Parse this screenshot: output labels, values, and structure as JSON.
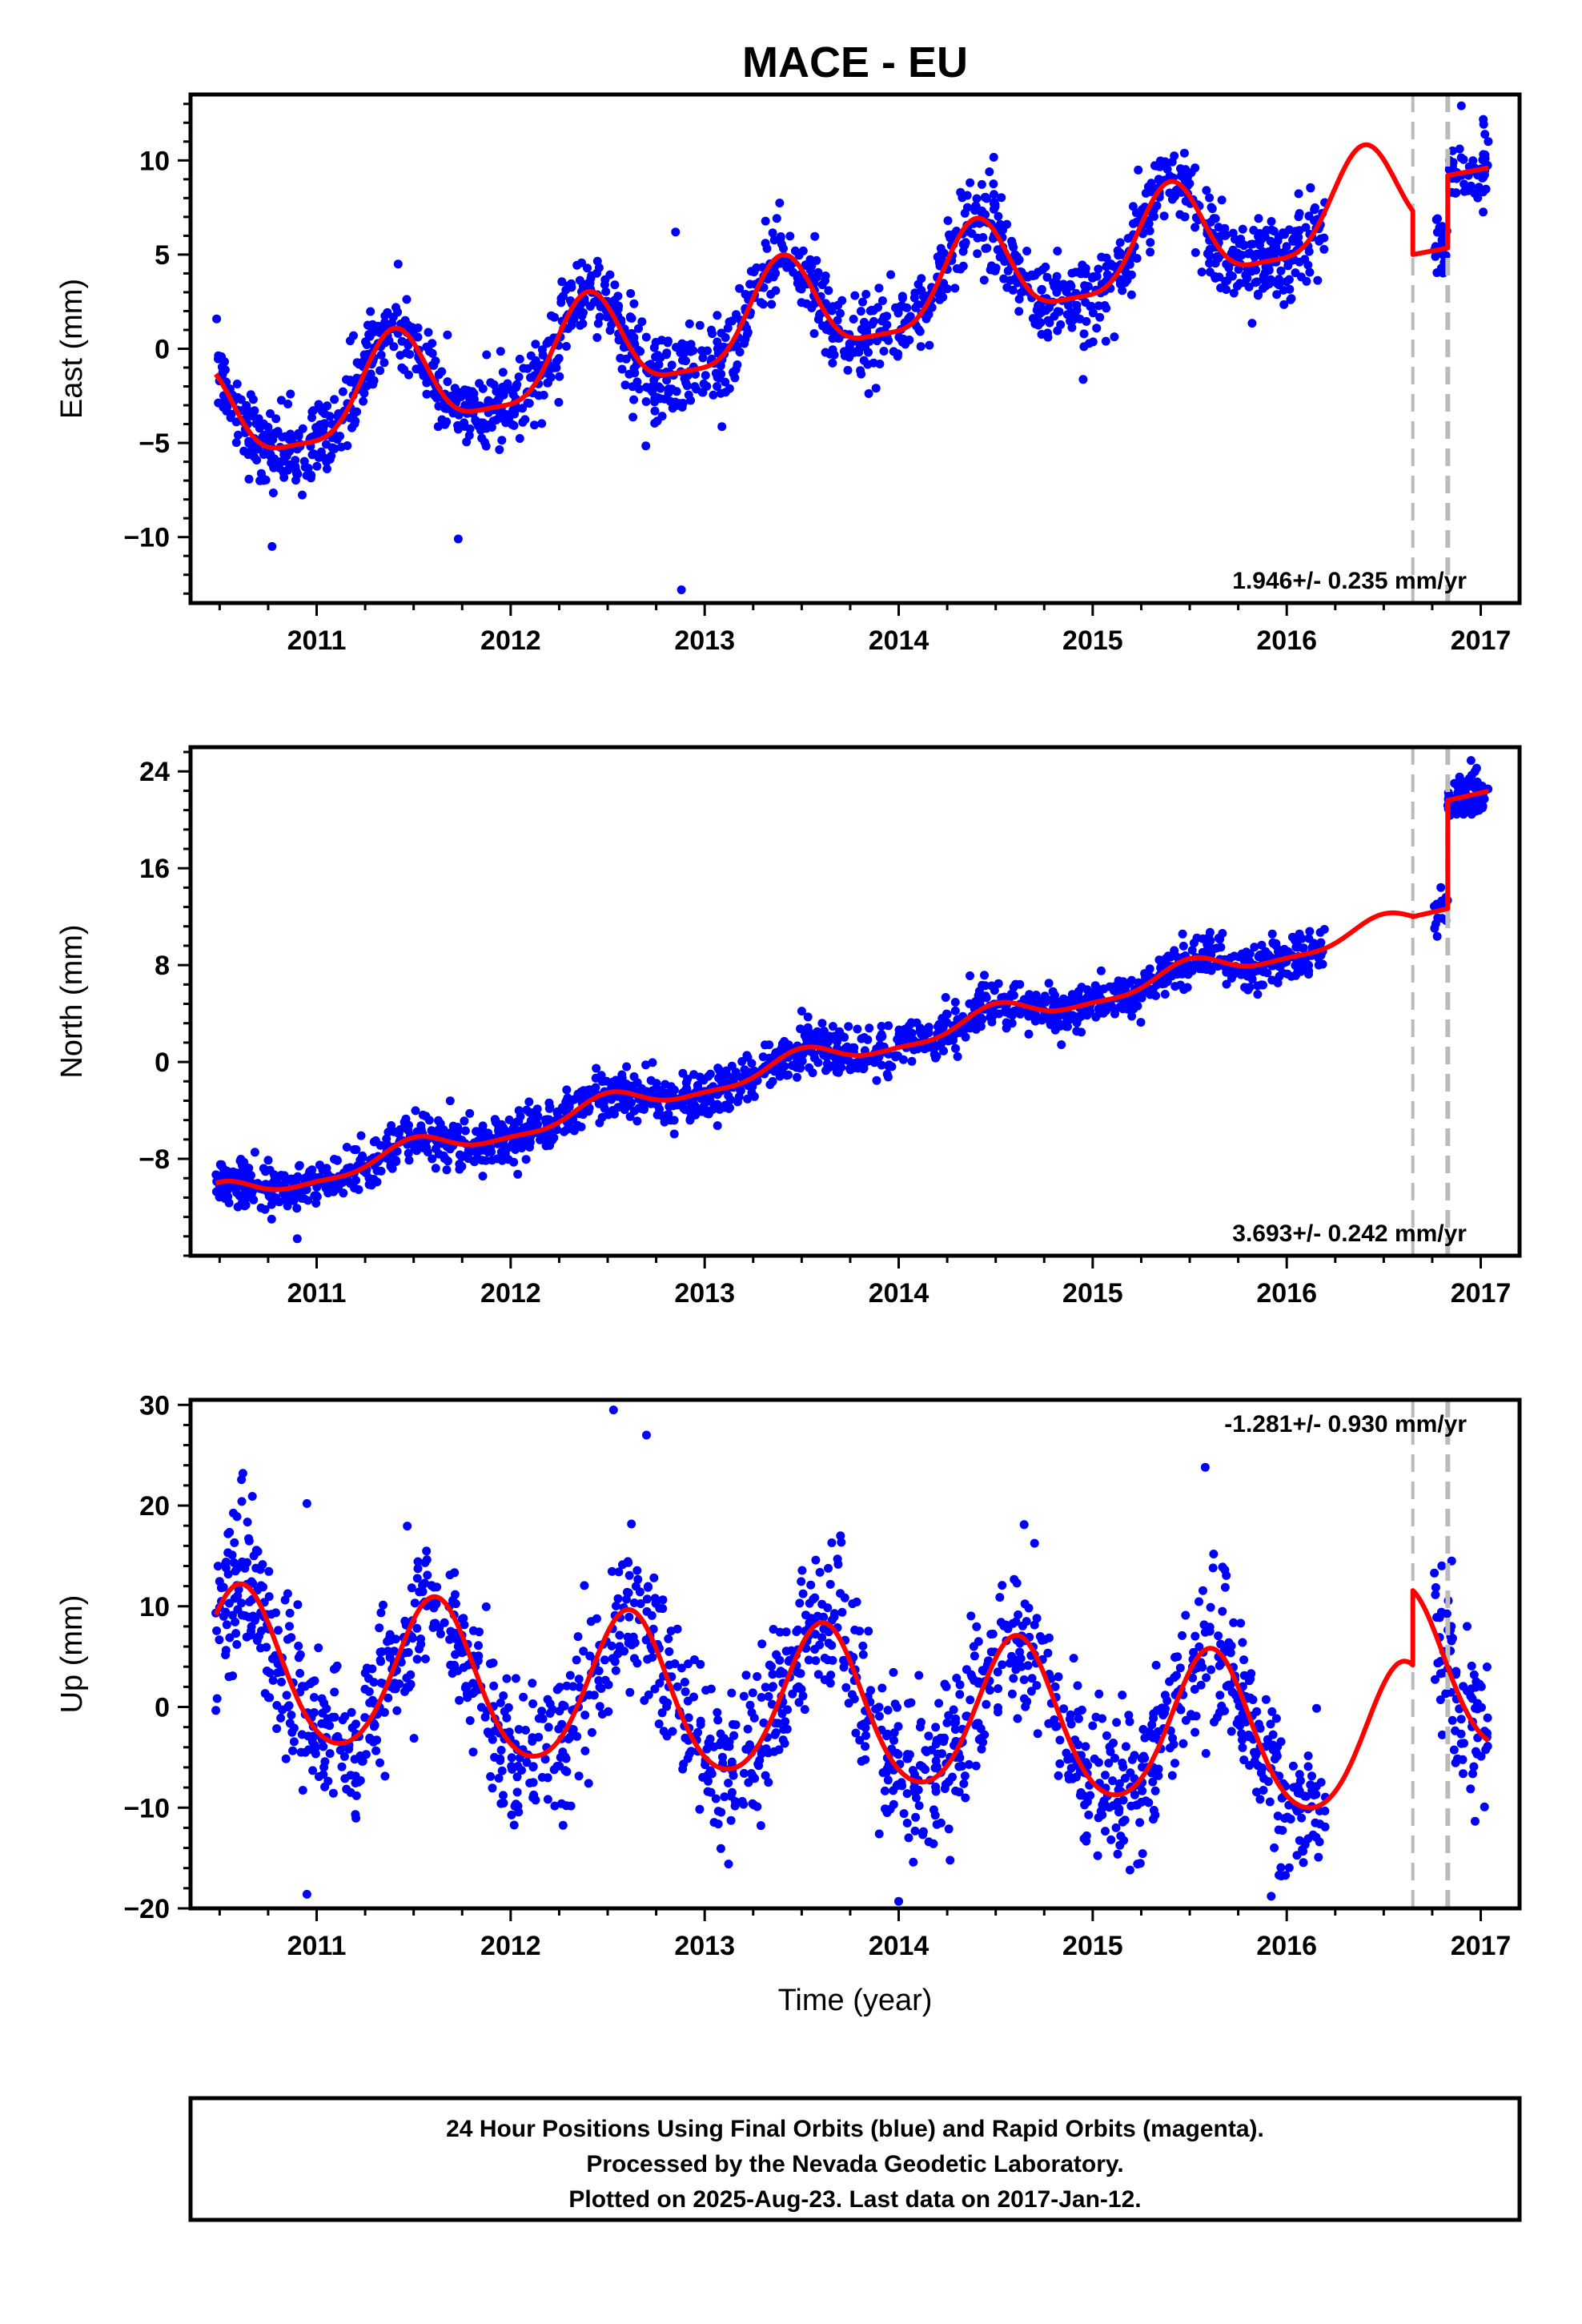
{
  "title": "MACE - EU",
  "xlabel": "Time (year)",
  "caption": [
    "24 Hour Positions Using Final Orbits (blue) and Rapid Orbits (magenta).",
    "Processed by the Nevada Geodetic Laboratory.",
    "Plotted on 2025-Aug-23. Last data on 2017-Jan-12."
  ],
  "colors": {
    "data": "#0000ff",
    "model": "#ff0000",
    "event_line": "#bbbbbb",
    "axes": "#000000"
  },
  "chart_data": [
    {
      "type": "scatter",
      "component": "east",
      "ylabel": "East (mm)",
      "xlim": [
        2010.35,
        2017.2
      ],
      "ylim": [
        -13.5,
        13.5
      ],
      "xticks": [
        2011,
        2012,
        2013,
        2014,
        2015,
        2016,
        2017
      ],
      "yticks": [
        -10,
        -5,
        0,
        5,
        10
      ],
      "rate_text": "1.946+/- 0.235 mm/yr",
      "rate_position": "bottom-right",
      "event_lines": [
        2016.65,
        2016.83
      ],
      "model": {
        "segments": [
          {
            "x_start": 2010.48,
            "x_end": 2016.65,
            "trend": [
              2010.48,
              -4.0,
              1.946
            ],
            "annual": {
              "amplitude": 2.6,
              "peak": 2010.4
            },
            "semiannual": {
              "amplitude": 0.7,
              "peak": 2010.4
            }
          },
          {
            "x_start": 2016.65,
            "x_end": 2016.83,
            "trend": [
              2016.65,
              5.0,
              1.946
            ],
            "annual": {
              "amplitude": 0.0,
              "peak": 2010.4
            },
            "semiannual": {
              "amplitude": 0.0,
              "peak": 2010.4
            }
          },
          {
            "x_start": 2016.83,
            "x_end": 2017.04,
            "trend": [
              2016.83,
              9.2,
              1.946
            ],
            "annual": {
              "amplitude": 0.0,
              "peak": 2010.4
            },
            "semiannual": {
              "amplitude": 0.0,
              "peak": 2010.4
            }
          }
        ]
      },
      "observations": {
        "x_start": 2010.48,
        "x_end": 2017.04,
        "scatter_sd": 1.1,
        "n_points": 1900,
        "gaps": [
          [
            2016.2,
            2016.76
          ]
        ],
        "outliers": [
          [
            2012.85,
            6.2
          ],
          [
            2012.88,
            -12.8
          ],
          [
            2011.42,
            4.5
          ],
          [
            2011.73,
            -10.1
          ],
          [
            2010.77,
            -10.5
          ],
          [
            2016.9,
            12.9
          ]
        ]
      }
    },
    {
      "type": "scatter",
      "component": "north",
      "ylabel": "North (mm)",
      "xlim": [
        2010.35,
        2017.2
      ],
      "ylim": [
        -16,
        26
      ],
      "xticks": [
        2011,
        2012,
        2013,
        2014,
        2015,
        2016,
        2017
      ],
      "yticks": [
        -8,
        0,
        8,
        16,
        24
      ],
      "rate_text": "3.693+/- 0.242 mm/yr",
      "rate_position": "bottom-right",
      "event_lines": [
        2016.65,
        2016.83
      ],
      "model": {
        "segments": [
          {
            "x_start": 2010.48,
            "x_end": 2016.65,
            "trend": [
              2010.48,
              -11.2,
              3.693
            ],
            "annual": {
              "amplitude": 0.9,
              "peak": 2010.5
            },
            "semiannual": {
              "amplitude": 0.3,
              "peak": 2010.5
            }
          },
          {
            "x_start": 2016.65,
            "x_end": 2016.83,
            "trend": [
              2016.65,
              12.0,
              3.693
            ],
            "annual": {
              "amplitude": 0.0,
              "peak": 2010.5
            },
            "semiannual": {
              "amplitude": 0.0,
              "peak": 2010.5
            }
          },
          {
            "x_start": 2016.83,
            "x_end": 2017.04,
            "trend": [
              2016.83,
              21.6,
              3.693
            ],
            "annual": {
              "amplitude": 0.0,
              "peak": 2010.5
            },
            "semiannual": {
              "amplitude": 0.0,
              "peak": 2010.5
            }
          }
        ]
      },
      "observations": {
        "x_start": 2010.48,
        "x_end": 2017.04,
        "scatter_sd": 0.95,
        "n_points": 1900,
        "gaps": [
          [
            2016.2,
            2016.76
          ]
        ],
        "outliers": [
          [
            2013.5,
            4.2
          ],
          [
            2010.9,
            -14.6
          ],
          [
            2012.05,
            -4.5
          ],
          [
            2016.95,
            24.9
          ]
        ]
      }
    },
    {
      "type": "scatter",
      "component": "up",
      "ylabel": "Up (mm)",
      "xlim": [
        2010.35,
        2017.2
      ],
      "ylim": [
        -20,
        30.5
      ],
      "xticks": [
        2011,
        2012,
        2013,
        2014,
        2015,
        2016,
        2017
      ],
      "yticks": [
        -20,
        -10,
        0,
        10,
        20,
        30
      ],
      "rate_text": "-1.281+/- 0.930 mm/yr",
      "rate_position": "top-right",
      "event_lines": [
        2016.65,
        2016.83
      ],
      "model": {
        "segments": [
          {
            "x_start": 2010.48,
            "x_end": 2016.65,
            "trend": [
              2010.48,
              4.0,
              -1.281
            ],
            "annual": {
              "amplitude": 7.6,
              "peak": 2010.61
            },
            "semiannual": {
              "amplitude": 0.8,
              "peak": 2010.61
            }
          },
          {
            "x_start": 2016.65,
            "x_end": 2017.04,
            "trend": [
              2016.65,
              3.5,
              -1.281
            ],
            "annual": {
              "amplitude": 7.6,
              "peak": 2010.61
            },
            "semiannual": {
              "amplitude": 0.8,
              "peak": 2010.61
            }
          }
        ]
      },
      "observations": {
        "x_start": 2010.48,
        "x_end": 2017.04,
        "scatter_sd": 3.8,
        "n_points": 1750,
        "gaps": [
          [
            2016.2,
            2016.76
          ]
        ],
        "outliers": [
          [
            2012.53,
            29.5
          ],
          [
            2012.7,
            27.0
          ],
          [
            2010.62,
            23.2
          ],
          [
            2015.58,
            23.8
          ],
          [
            2010.95,
            20.2
          ],
          [
            2013.7,
            17.0
          ],
          [
            2010.95,
            -18.6
          ],
          [
            2014.0,
            -19.3
          ],
          [
            2015.92,
            -18.8
          ],
          [
            2016.85,
            14.5
          ]
        ]
      }
    }
  ]
}
